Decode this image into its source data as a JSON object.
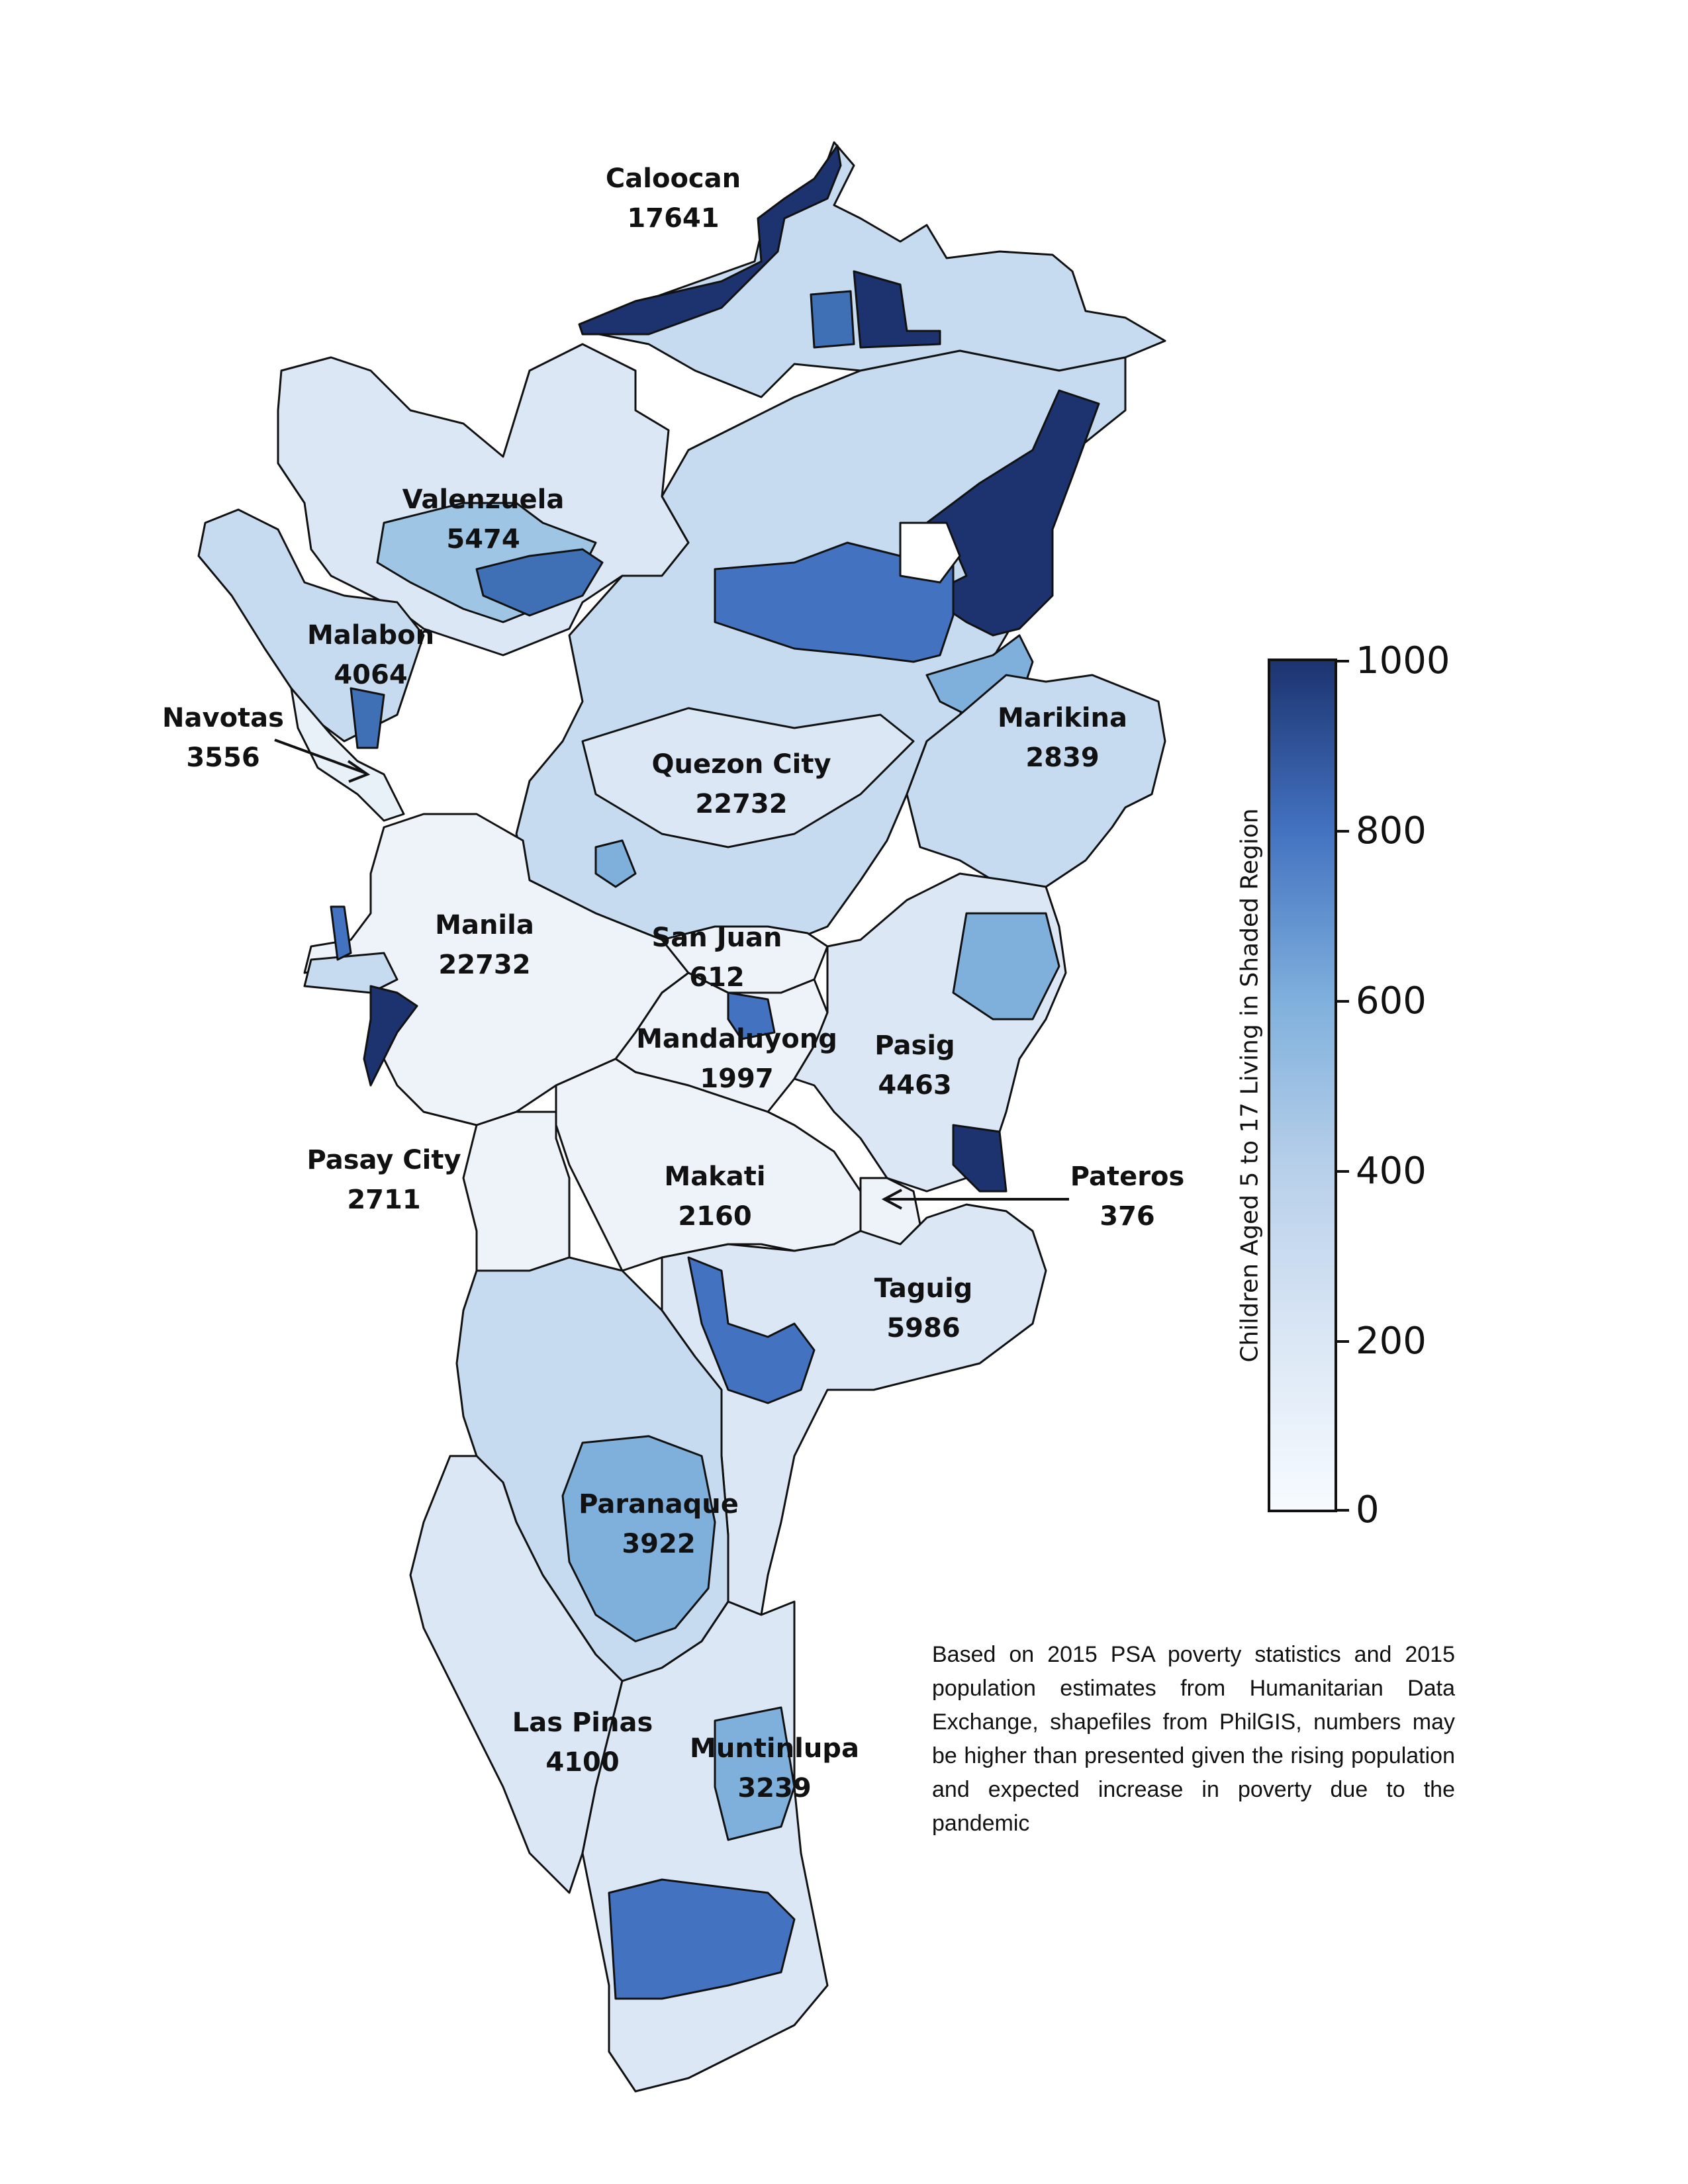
{
  "colors": {
    "low": "#f7fbff",
    "mid_low": "#c6dbef",
    "mid": "#6baed6",
    "mid_high": "#3f6fb5",
    "high": "#1c3370",
    "boundary": "#111111"
  },
  "districts": [
    {
      "name": "Caloocan",
      "value": "17641"
    },
    {
      "name": "Valenzuela",
      "value": "5474"
    },
    {
      "name": "Malabon",
      "value": "4064"
    },
    {
      "name": "Navotas",
      "value": "3556"
    },
    {
      "name": "Quezon City",
      "value": "22732"
    },
    {
      "name": "Marikina",
      "value": "2839"
    },
    {
      "name": "Manila",
      "value": "22732"
    },
    {
      "name": "San Juan",
      "value": "612"
    },
    {
      "name": "Mandaluyong",
      "value": "1997"
    },
    {
      "name": "Pasig",
      "value": "4463"
    },
    {
      "name": "Pasay City",
      "value": "2711"
    },
    {
      "name": "Makati",
      "value": "2160"
    },
    {
      "name": "Pateros",
      "value": "376"
    },
    {
      "name": "Taguig",
      "value": "5986"
    },
    {
      "name": "Paranaque",
      "value": "3922"
    },
    {
      "name": "Las Pinas",
      "value": "4100"
    },
    {
      "name": "Muntinlupa",
      "value": "3239"
    }
  ],
  "colorbar": {
    "title": "Children Aged 5 to 17 Living in Shaded Region",
    "min": 0,
    "max": 1000,
    "ticks": [
      "1000",
      "800",
      "600",
      "400",
      "200",
      "0"
    ]
  },
  "note": "Based on 2015 PSA poverty statistics and 2015 population estimates from Humanitarian Data Exchange, shapefiles from PhilGIS, numbers may be higher than presented given the rising population and expected increase in poverty due to the pandemic"
}
